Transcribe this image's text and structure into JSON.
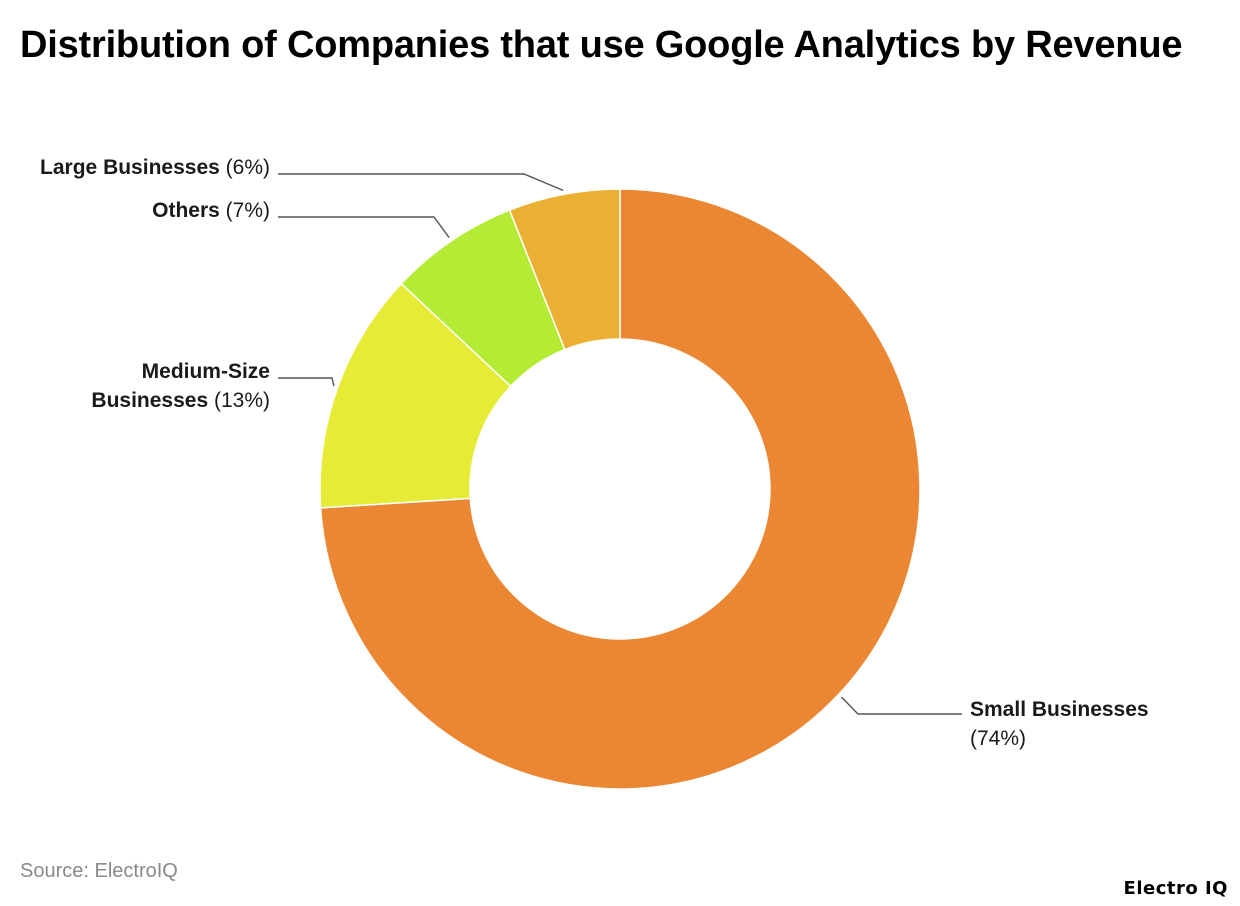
{
  "title": "Distribution of Companies that use Google Analytics by Revenue",
  "source": "Source: ElectroIQ",
  "brand": "Electro IQ",
  "chart_data": {
    "type": "pie",
    "donut": true,
    "title": "Distribution of Companies that use Google Analytics by Revenue",
    "slices": [
      {
        "label": "Small Businesses",
        "value": 74,
        "display": "(74%)",
        "color": "#EB8733"
      },
      {
        "label": "Medium-Size Businesses",
        "label_lines": [
          "Medium-Size",
          "Businesses"
        ],
        "value": 13,
        "display": "(13%)",
        "color": "#E6EB35"
      },
      {
        "label": "Others",
        "value": 7,
        "display": "(7%)",
        "color": "#B4EB35"
      },
      {
        "label": "Large Businesses",
        "value": 6,
        "display": "(6%)",
        "color": "#EBB033"
      }
    ]
  }
}
